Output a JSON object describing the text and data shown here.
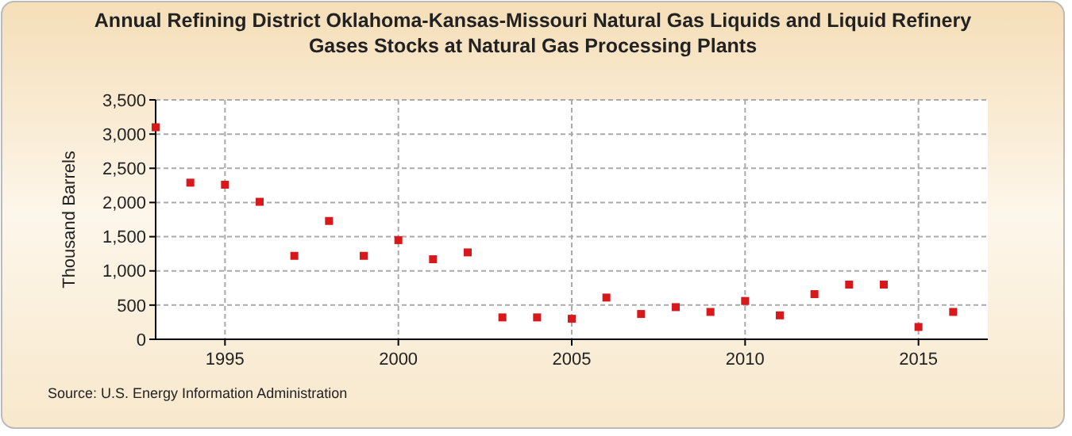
{
  "chart_data": {
    "type": "scatter",
    "title": "Annual Refining District Oklahoma-Kansas-Missouri Natural Gas Liquids and Liquid Refinery Gases Stocks at Natural Gas Processing Plants",
    "ylabel": "Thousand Barrels",
    "annotations": [
      "Source: U.S. Energy Information Administration"
    ],
    "x": [
      1993,
      1994,
      1995,
      1996,
      1997,
      1998,
      1999,
      2000,
      2001,
      2002,
      2003,
      2004,
      2005,
      2006,
      2007,
      2008,
      2009,
      2010,
      2011,
      2012,
      2013,
      2014,
      2015,
      2016
    ],
    "series": [
      {
        "color": "#d7191c",
        "values": [
          3100,
          2290,
          2260,
          2010,
          1220,
          1730,
          1220,
          1450,
          1170,
          1270,
          320,
          320,
          300,
          610,
          370,
          470,
          400,
          560,
          350,
          660,
          800,
          800,
          180,
          400
        ]
      }
    ],
    "xlim": [
      1993,
      2017
    ],
    "xticks": [
      1995,
      2000,
      2005,
      2010,
      2015
    ],
    "ylim": [
      0,
      3500
    ],
    "yticks": [
      {
        "value": 0,
        "label": "0"
      },
      {
        "value": 500,
        "label": "500"
      },
      {
        "value": 1000,
        "label": "1,000"
      },
      {
        "value": 1500,
        "label": "1,500"
      },
      {
        "value": 2000,
        "label": "2,000"
      },
      {
        "value": 2500,
        "label": "2,500"
      },
      {
        "value": 3000,
        "label": "3,000"
      },
      {
        "value": 3500,
        "label": "3,500"
      }
    ],
    "grid": true,
    "marker": "square"
  }
}
